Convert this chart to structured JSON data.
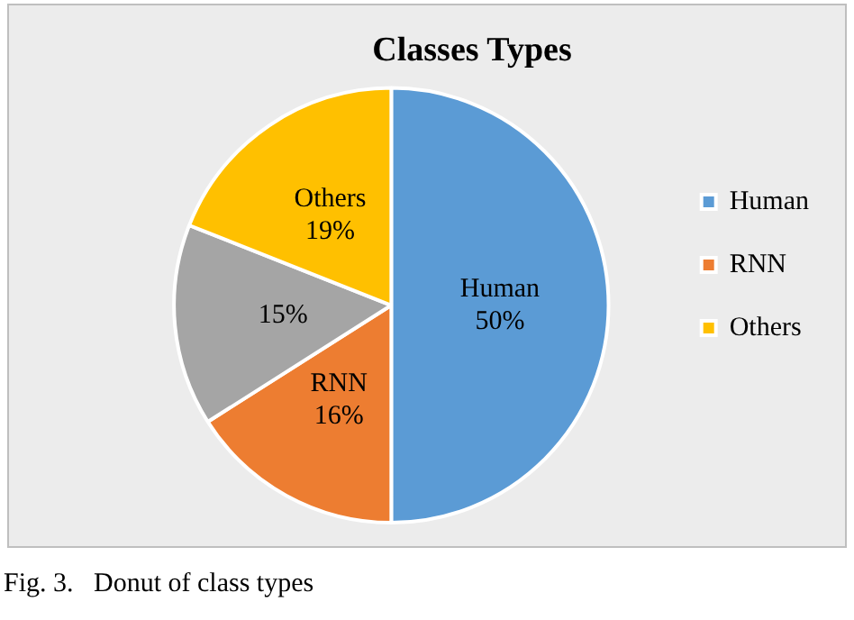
{
  "chart_data": {
    "type": "pie",
    "title": "Classes Types",
    "categories": [
      "Human",
      "RNN",
      null,
      "Others"
    ],
    "values": [
      50,
      16,
      15,
      19
    ],
    "value_labels": [
      "50%",
      "16%",
      "15%",
      "19%"
    ],
    "colors": [
      "#5b9bd5",
      "#ed7d31",
      "#a5a5a5",
      "#ffc000"
    ],
    "legend": "right",
    "annotations": [
      "Fig. 3.   Donut of class types"
    ]
  }
}
